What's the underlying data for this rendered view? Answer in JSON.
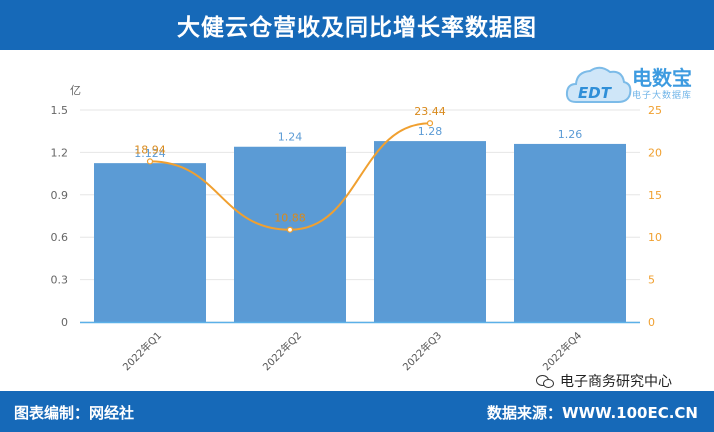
{
  "header": {
    "title": "大健云仓营收及同比增长率数据图"
  },
  "footer": {
    "left": "图表编制：网经社",
    "right": "数据来源：WWW.100EC.CN"
  },
  "watermark": {
    "wechat": "电子商务研究中心",
    "logo_main": "电数宝",
    "logo_sub": "电子大数据库",
    "logo_mark": "EDT"
  },
  "colors": {
    "bar": "#5b9bd5",
    "line": "#f0a030",
    "header": "#1669b8"
  },
  "chart_data": {
    "type": "bar",
    "categories": [
      "2022年Q1",
      "2022年Q2",
      "2022年Q3",
      "2022年Q4"
    ],
    "series": [
      {
        "values": [
          1.124,
          1.24,
          1.28,
          1.26
        ],
        "axis": "left",
        "kind": "bar"
      },
      {
        "values": [
          18.94,
          10.88,
          23.44,
          null
        ],
        "axis": "right",
        "kind": "line"
      }
    ],
    "left_axis": {
      "unit": "亿",
      "ticks": [
        0,
        0.3,
        0.6,
        0.9,
        1.2,
        1.5
      ],
      "range": [
        0,
        1.5
      ]
    },
    "right_axis": {
      "ticks": [
        0,
        5,
        10,
        15,
        20,
        25
      ],
      "range": [
        0,
        25
      ]
    },
    "grid": true
  }
}
